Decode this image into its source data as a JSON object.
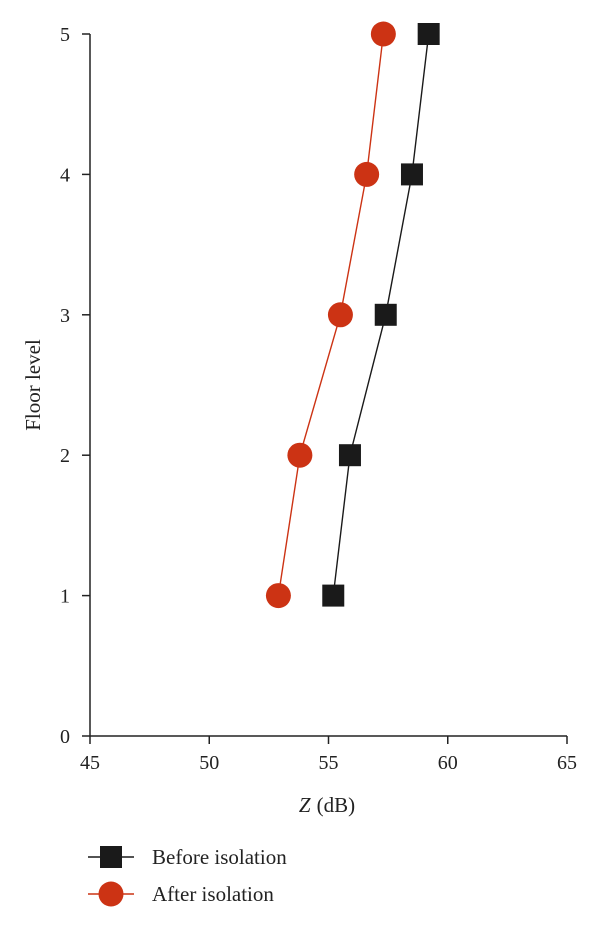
{
  "chart_data": {
    "type": "line",
    "xlabel_symbol": "Z",
    "xlabel_unit": "(dB)",
    "ylabel": "Floor level",
    "xlim": [
      45,
      65
    ],
    "ylim": [
      0,
      5
    ],
    "xticks": [
      "45",
      "50",
      "55",
      "60",
      "65"
    ],
    "yticks": [
      "0",
      "1",
      "2",
      "3",
      "4",
      "5"
    ],
    "grid": false,
    "legend_position": "bottom-left",
    "series": [
      {
        "name": "Before isolation",
        "marker": "square",
        "color": "#1a1a1a",
        "x": [
          55.2,
          55.9,
          57.4,
          58.5,
          59.2
        ],
        "y": [
          1,
          2,
          3,
          4,
          5
        ]
      },
      {
        "name": "After isolation",
        "marker": "circle",
        "color": "#cc3314",
        "x": [
          52.9,
          53.8,
          55.5,
          56.6,
          57.3
        ],
        "y": [
          1,
          2,
          3,
          4,
          5
        ]
      }
    ]
  }
}
